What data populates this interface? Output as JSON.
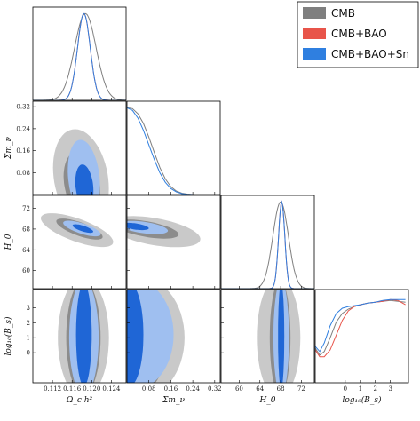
{
  "colors": {
    "cmb": "#7f7f7f",
    "cmb_bao": "#e8544a",
    "cmb_bao_sn": "#2f7fe0",
    "cmb_fill_outer": "#c9c9c9",
    "cmb_fill_inner": "#8c8c8c",
    "sn_fill_outer": "#9fbff0",
    "sn_fill_inner": "#1f66d6"
  },
  "chart_data": {
    "type": "triangle",
    "parameters": [
      {
        "key": "omch2",
        "label": "Ω_c h²",
        "range": [
          0.108,
          0.127
        ],
        "ticks": [
          "0.112",
          "0.116",
          "0.120",
          "0.124"
        ],
        "tick_values": [
          0.112,
          0.116,
          0.12,
          0.124
        ]
      },
      {
        "key": "mnu",
        "label": "Σm_ν",
        "range": [
          0.0,
          0.34
        ],
        "ticks": [
          "0.08",
          "0.16",
          "0.24",
          "0.32"
        ],
        "tick_values": [
          0.08,
          0.16,
          0.24,
          0.32
        ]
      },
      {
        "key": "H0",
        "label": "H_0",
        "range": [
          56.5,
          74.5
        ],
        "ticks": [
          "60",
          "64",
          "68",
          "72"
        ],
        "tick_values": [
          60,
          64,
          68,
          72
        ]
      },
      {
        "key": "logBs",
        "label": "log₁₀(B_s)",
        "range": [
          -2.0,
          4.2
        ],
        "ticks": [
          "0",
          "1",
          "2",
          "3"
        ],
        "tick_values": [
          0,
          1,
          2,
          3
        ]
      }
    ],
    "series": [
      {
        "name": "CMB",
        "marginals": {
          "omch2": {
            "mean": 0.1187,
            "sigma": 0.0022
          },
          "H0": {
            "mean": 68.0,
            "sigma": 1.5
          }
        }
      },
      {
        "name": "CMB+BAO",
        "marginals": {
          "omch2": {
            "mean": 0.1184,
            "sigma": 0.0013
          },
          "H0": {
            "mean": 68.2,
            "sigma": 0.6
          }
        }
      },
      {
        "name": "CMB+BAO+Sn",
        "marginals": {
          "omch2": {
            "mean": 0.1184,
            "sigma": 0.0013
          },
          "H0": {
            "mean": 68.2,
            "sigma": 0.6
          }
        }
      }
    ],
    "mnu_curve": {
      "x": [
        0.0,
        0.02,
        0.04,
        0.06,
        0.08,
        0.1,
        0.12,
        0.14,
        0.16,
        0.18,
        0.2,
        0.22,
        0.24
      ],
      "cmb": [
        1.0,
        0.99,
        0.93,
        0.82,
        0.66,
        0.48,
        0.31,
        0.18,
        0.09,
        0.04,
        0.015,
        0.005,
        0.0
      ],
      "sn": [
        1.0,
        0.97,
        0.88,
        0.74,
        0.57,
        0.4,
        0.25,
        0.14,
        0.07,
        0.03,
        0.01,
        0.003,
        0.0
      ]
    },
    "logbs_curve": {
      "x": [
        -2.0,
        -1.7,
        -1.4,
        -1.0,
        -0.6,
        -0.2,
        0.2,
        0.6,
        1.0,
        1.5,
        2.0,
        2.5,
        3.0,
        3.5,
        4.0
      ],
      "cmb": [
        0.4,
        0.32,
        0.36,
        0.52,
        0.7,
        0.8,
        0.85,
        0.88,
        0.9,
        0.92,
        0.93,
        0.94,
        0.95,
        0.94,
        0.93
      ],
      "cmb_bao": [
        0.38,
        0.3,
        0.3,
        0.38,
        0.55,
        0.72,
        0.83,
        0.88,
        0.9,
        0.92,
        0.93,
        0.94,
        0.96,
        0.95,
        0.9
      ],
      "sn": [
        0.42,
        0.36,
        0.46,
        0.66,
        0.8,
        0.86,
        0.88,
        0.89,
        0.9,
        0.92,
        0.93,
        0.95,
        0.96,
        0.96,
        0.96
      ]
    },
    "legend_position": "top-right",
    "grid": false
  }
}
